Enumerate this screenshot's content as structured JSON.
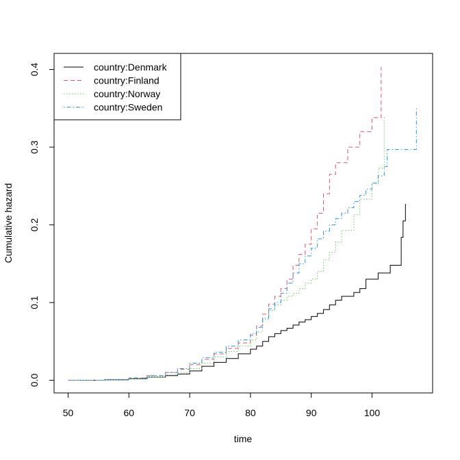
{
  "chart_data": {
    "type": "line",
    "step": true,
    "xlabel": "time",
    "ylabel": "Cumulative hazard",
    "xlim": [
      50,
      108
    ],
    "ylim": [
      0,
      0.4
    ],
    "xticks": [
      50,
      60,
      70,
      80,
      90,
      100
    ],
    "yticks": [
      0.0,
      0.1,
      0.2,
      0.3,
      0.4
    ],
    "xtick_labels": [
      "50",
      "60",
      "70",
      "80",
      "90",
      "100"
    ],
    "ytick_labels": [
      "0.0",
      "0.1",
      "0.2",
      "0.3",
      "0.4"
    ],
    "grid": false,
    "legend_position": "top-left",
    "series": [
      {
        "name": "country:Denmark",
        "color": "#000000",
        "dash": "solid",
        "x": [
          50,
          56,
          60,
          63,
          66,
          68,
          70,
          72,
          74,
          76,
          78,
          80,
          81,
          82,
          83,
          84,
          85,
          86,
          87,
          88,
          89,
          90,
          91,
          92,
          93,
          94,
          95,
          97,
          98,
          99,
          101,
          103,
          104.8,
          105.1,
          105.5
        ],
        "y": [
          0.0,
          0.0005,
          0.002,
          0.004,
          0.006,
          0.008,
          0.012,
          0.018,
          0.023,
          0.028,
          0.034,
          0.04,
          0.044,
          0.05,
          0.056,
          0.06,
          0.064,
          0.067,
          0.071,
          0.075,
          0.078,
          0.082,
          0.086,
          0.091,
          0.097,
          0.103,
          0.108,
          0.113,
          0.118,
          0.13,
          0.138,
          0.148,
          0.184,
          0.205,
          0.227
        ]
      },
      {
        "name": "country:Finland",
        "color": "#DF536B",
        "dash": "dashed",
        "x": [
          50,
          56,
          60,
          63,
          66,
          68,
          70,
          72,
          74,
          76,
          78,
          80,
          81,
          82,
          83,
          84,
          85,
          86,
          87,
          88,
          89,
          90,
          91,
          92,
          93,
          94,
          96,
          98,
          100,
          101.5
        ],
        "y": [
          0.0,
          0.001,
          0.003,
          0.006,
          0.01,
          0.014,
          0.02,
          0.027,
          0.034,
          0.041,
          0.048,
          0.058,
          0.07,
          0.085,
          0.098,
          0.108,
          0.118,
          0.13,
          0.148,
          0.162,
          0.175,
          0.195,
          0.215,
          0.24,
          0.265,
          0.28,
          0.3,
          0.32,
          0.338,
          0.403
        ]
      },
      {
        "name": "country:Norway",
        "color": "#61D04F",
        "dash": "dotted",
        "x": [
          50,
          56,
          60,
          63,
          66,
          68,
          70,
          72,
          74,
          76,
          78,
          80,
          81,
          82,
          83,
          84,
          85,
          86,
          87,
          88,
          89,
          90,
          91,
          92,
          93,
          94,
          95,
          97,
          98,
          100,
          101,
          102
        ],
        "y": [
          0.0,
          0.0005,
          0.002,
          0.004,
          0.007,
          0.01,
          0.015,
          0.022,
          0.03,
          0.037,
          0.044,
          0.052,
          0.062,
          0.078,
          0.09,
          0.097,
          0.103,
          0.108,
          0.112,
          0.118,
          0.125,
          0.13,
          0.14,
          0.155,
          0.165,
          0.178,
          0.193,
          0.213,
          0.233,
          0.253,
          0.273,
          0.34
        ]
      },
      {
        "name": "country:Sweden",
        "color": "#2297E6",
        "dash": "dashdot",
        "x": [
          50,
          56,
          60,
          63,
          66,
          68,
          70,
          72,
          74,
          76,
          78,
          80,
          81,
          82,
          83,
          84,
          85,
          86,
          87,
          88,
          89,
          90,
          91,
          92,
          93,
          94,
          95,
          96,
          97,
          98,
          99,
          100,
          101,
          102,
          102.5,
          107.3
        ],
        "y": [
          0.0,
          0.001,
          0.003,
          0.006,
          0.01,
          0.015,
          0.022,
          0.029,
          0.036,
          0.044,
          0.052,
          0.06,
          0.068,
          0.08,
          0.092,
          0.1,
          0.112,
          0.125,
          0.138,
          0.15,
          0.16,
          0.17,
          0.182,
          0.192,
          0.2,
          0.208,
          0.215,
          0.222,
          0.23,
          0.238,
          0.246,
          0.254,
          0.263,
          0.275,
          0.297,
          0.351
        ]
      }
    ]
  }
}
